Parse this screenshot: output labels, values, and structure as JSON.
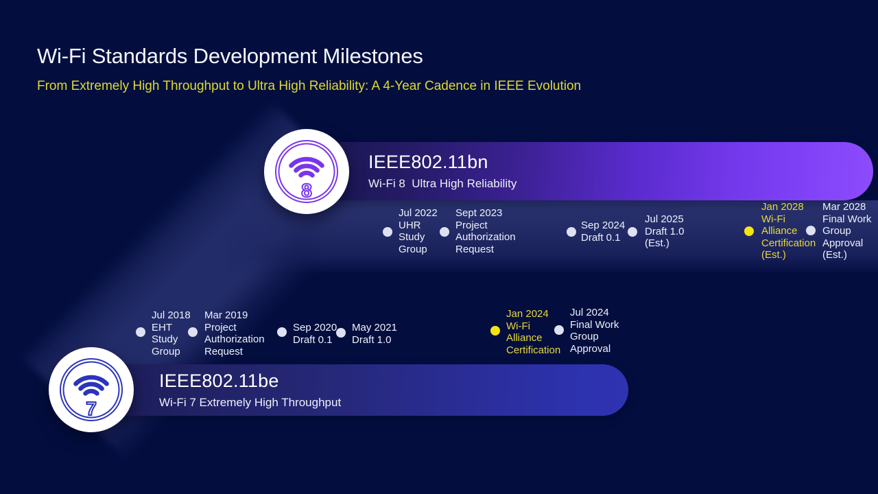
{
  "slide": {
    "title": "Wi-Fi Standards Development Milestones",
    "subtitle": "From Extremely High Throughput to Ultra High Reliability: A 4-Year Cadence in IEEE Evolution"
  },
  "colors": {
    "background": "#030e3f",
    "subtitle_yellow": "#ddda2f",
    "milestone_text": "#eef1fb",
    "milestone_highlight_text": "#e6d83d",
    "dot_white": "#dde1f2",
    "dot_yellow": "#f3e414",
    "wifi8_accent": "#7a35ec",
    "wifi7_accent": "#2b34bd"
  },
  "tracks": [
    {
      "standard": "IEEE802.11bn",
      "generation": "Wi-Fi 8  Ultra High Reliability",
      "badge_digit": "8",
      "milestones": [
        {
          "lines": [
            "Jul 2022",
            "UHR",
            "Study",
            "Group"
          ],
          "highlight": false
        },
        {
          "lines": [
            "Sept 2023",
            "Project",
            "Authorization",
            "Request"
          ],
          "highlight": false
        },
        {
          "lines": [
            "Sep 2024",
            "Draft 0.1"
          ],
          "highlight": false
        },
        {
          "lines": [
            "Jul 2025",
            "Draft 1.0",
            "(Est.)"
          ],
          "highlight": false
        },
        {
          "lines": [
            "Jan 2028",
            "Wi-Fi",
            "Alliance",
            "Certification",
            "(Est.)"
          ],
          "highlight": true
        },
        {
          "lines": [
            "Mar 2028",
            "Final Work",
            "Group",
            "Approval",
            "(Est.)"
          ],
          "highlight": false
        }
      ]
    },
    {
      "standard": "IEEE802.11be",
      "generation": "Wi-Fi 7 Extremely High Throughput",
      "badge_digit": "7",
      "milestones": [
        {
          "lines": [
            "Jul 2018",
            "EHT",
            "Study",
            "Group"
          ],
          "highlight": false
        },
        {
          "lines": [
            "Mar 2019",
            "Project",
            "Authorization",
            "Request"
          ],
          "highlight": false
        },
        {
          "lines": [
            "Sep 2020",
            "Draft 0.1"
          ],
          "highlight": false
        },
        {
          "lines": [
            "May 2021",
            "Draft 1.0"
          ],
          "highlight": false
        },
        {
          "lines": [
            "Jan 2024",
            "Wi-Fi",
            "Alliance",
            "Certification"
          ],
          "highlight": true
        },
        {
          "lines": [
            "Jul 2024",
            "Final Work",
            "Group",
            "Approval"
          ],
          "highlight": false
        }
      ]
    }
  ]
}
